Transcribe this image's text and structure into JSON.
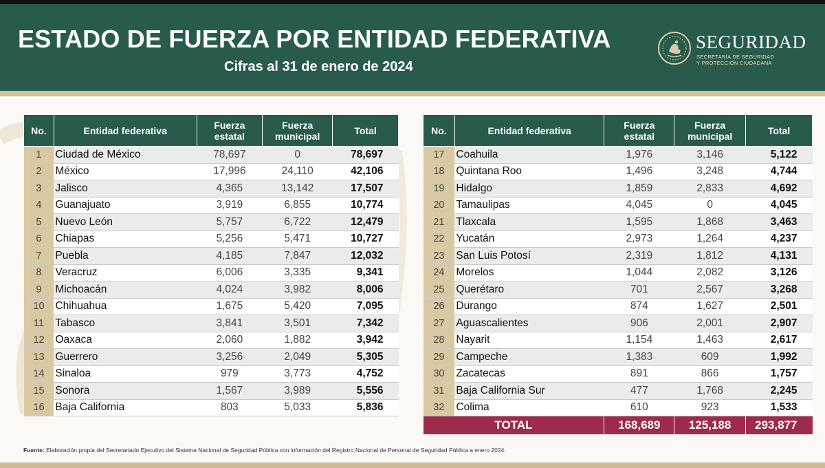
{
  "header": {
    "title": "ESTADO DE FUERZA POR ENTIDAD FEDERATIVA",
    "subtitle": "Cifras al 31 de enero de 2024",
    "brand": "SEGURIDAD",
    "brand_sub_1": "SECRETARÍA DE SEGURIDAD",
    "brand_sub_2": "Y PROTECCIÓN CIUDADANA",
    "seal_icon": "coat-of-arms-icon"
  },
  "colors": {
    "header_green": "#285b4b",
    "gold": "#d2c199",
    "total_red": "#9e2a4c"
  },
  "columns": {
    "no": "No.",
    "entity": "Entidad federativa",
    "state_1": "Fuerza",
    "state_2": "estatal",
    "muni_1": "Fuerza",
    "muni_2": "municipal",
    "total": "Total"
  },
  "left_rows": [
    {
      "no": "1",
      "entity": "Ciudad de México",
      "state": "78,697",
      "municipal": "0",
      "total": "78,697"
    },
    {
      "no": "2",
      "entity": "México",
      "state": "17,996",
      "municipal": "24,110",
      "total": "42,106"
    },
    {
      "no": "3",
      "entity": "Jalisco",
      "state": "4,365",
      "municipal": "13,142",
      "total": "17,507"
    },
    {
      "no": "4",
      "entity": "Guanajuato",
      "state": "3,919",
      "municipal": "6,855",
      "total": "10,774"
    },
    {
      "no": "5",
      "entity": "Nuevo León",
      "state": "5,757",
      "municipal": "6,722",
      "total": "12,479"
    },
    {
      "no": "6",
      "entity": "Chiapas",
      "state": "5,256",
      "municipal": "5,471",
      "total": "10,727"
    },
    {
      "no": "7",
      "entity": "Puebla",
      "state": "4,185",
      "municipal": "7,847",
      "total": "12,032"
    },
    {
      "no": "8",
      "entity": "Veracruz",
      "state": "6,006",
      "municipal": "3,335",
      "total": "9,341"
    },
    {
      "no": "9",
      "entity": "Michoacán",
      "state": "4,024",
      "municipal": "3,982",
      "total": "8,006"
    },
    {
      "no": "10",
      "entity": "Chihuahua",
      "state": "1,675",
      "municipal": "5,420",
      "total": "7,095"
    },
    {
      "no": "11",
      "entity": "Tabasco",
      "state": "3,841",
      "municipal": "3,501",
      "total": "7,342"
    },
    {
      "no": "12",
      "entity": "Oaxaca",
      "state": "2,060",
      "municipal": "1,882",
      "total": "3,942"
    },
    {
      "no": "13",
      "entity": "Guerrero",
      "state": "3,256",
      "municipal": "2,049",
      "total": "5,305"
    },
    {
      "no": "14",
      "entity": "Sinaloa",
      "state": "979",
      "municipal": "3,773",
      "total": "4,752"
    },
    {
      "no": "15",
      "entity": "Sonora",
      "state": "1,567",
      "municipal": "3,989",
      "total": "5,556"
    },
    {
      "no": "16",
      "entity": "Baja California",
      "state": "803",
      "municipal": "5,033",
      "total": "5,836"
    }
  ],
  "right_rows": [
    {
      "no": "17",
      "entity": "Coahuila",
      "state": "1,976",
      "municipal": "3,146",
      "total": "5,122"
    },
    {
      "no": "18",
      "entity": "Quintana Roo",
      "state": "1,496",
      "municipal": "3,248",
      "total": "4,744"
    },
    {
      "no": "19",
      "entity": "Hidalgo",
      "state": "1,859",
      "municipal": "2,833",
      "total": "4,692"
    },
    {
      "no": "20",
      "entity": "Tamaulipas",
      "state": "4,045",
      "municipal": "0",
      "total": "4,045"
    },
    {
      "no": "21",
      "entity": "Tlaxcala",
      "state": "1,595",
      "municipal": "1,868",
      "total": "3,463"
    },
    {
      "no": "22",
      "entity": "Yucatán",
      "state": "2,973",
      "municipal": "1,264",
      "total": "4,237"
    },
    {
      "no": "23",
      "entity": "San Luis Potosí",
      "state": "2,319",
      "municipal": "1,812",
      "total": "4,131"
    },
    {
      "no": "24",
      "entity": "Morelos",
      "state": "1,044",
      "municipal": "2,082",
      "total": "3,126"
    },
    {
      "no": "25",
      "entity": "Querétaro",
      "state": "701",
      "municipal": "2,567",
      "total": "3,268"
    },
    {
      "no": "26",
      "entity": "Durango",
      "state": "874",
      "municipal": "1,627",
      "total": "2,501"
    },
    {
      "no": "27",
      "entity": "Aguascalientes",
      "state": "906",
      "municipal": "2,001",
      "total": "2,907"
    },
    {
      "no": "28",
      "entity": "Nayarit",
      "state": "1,154",
      "municipal": "1,463",
      "total": "2,617"
    },
    {
      "no": "29",
      "entity": "Campeche",
      "state": "1,383",
      "municipal": "609",
      "total": "1,992"
    },
    {
      "no": "30",
      "entity": "Zacatecas",
      "state": "891",
      "municipal": "866",
      "total": "1,757"
    },
    {
      "no": "31",
      "entity": "Baja California Sur",
      "state": "477",
      "municipal": "1,768",
      "total": "2,245"
    },
    {
      "no": "32",
      "entity": "Colima",
      "state": "610",
      "municipal": "923",
      "total": "1,533"
    }
  ],
  "totals": {
    "label": "TOTAL",
    "state": "168,689",
    "municipal": "125,188",
    "total": "293,877"
  },
  "footer": {
    "source_label": "Fuente:",
    "source_text": "Elaboración propia del Secretariado Ejecutivo del Sistema Nacional de Seguridad Pública con información del Registro Nacional de Personal de Seguridad Pública a enero 2024."
  }
}
